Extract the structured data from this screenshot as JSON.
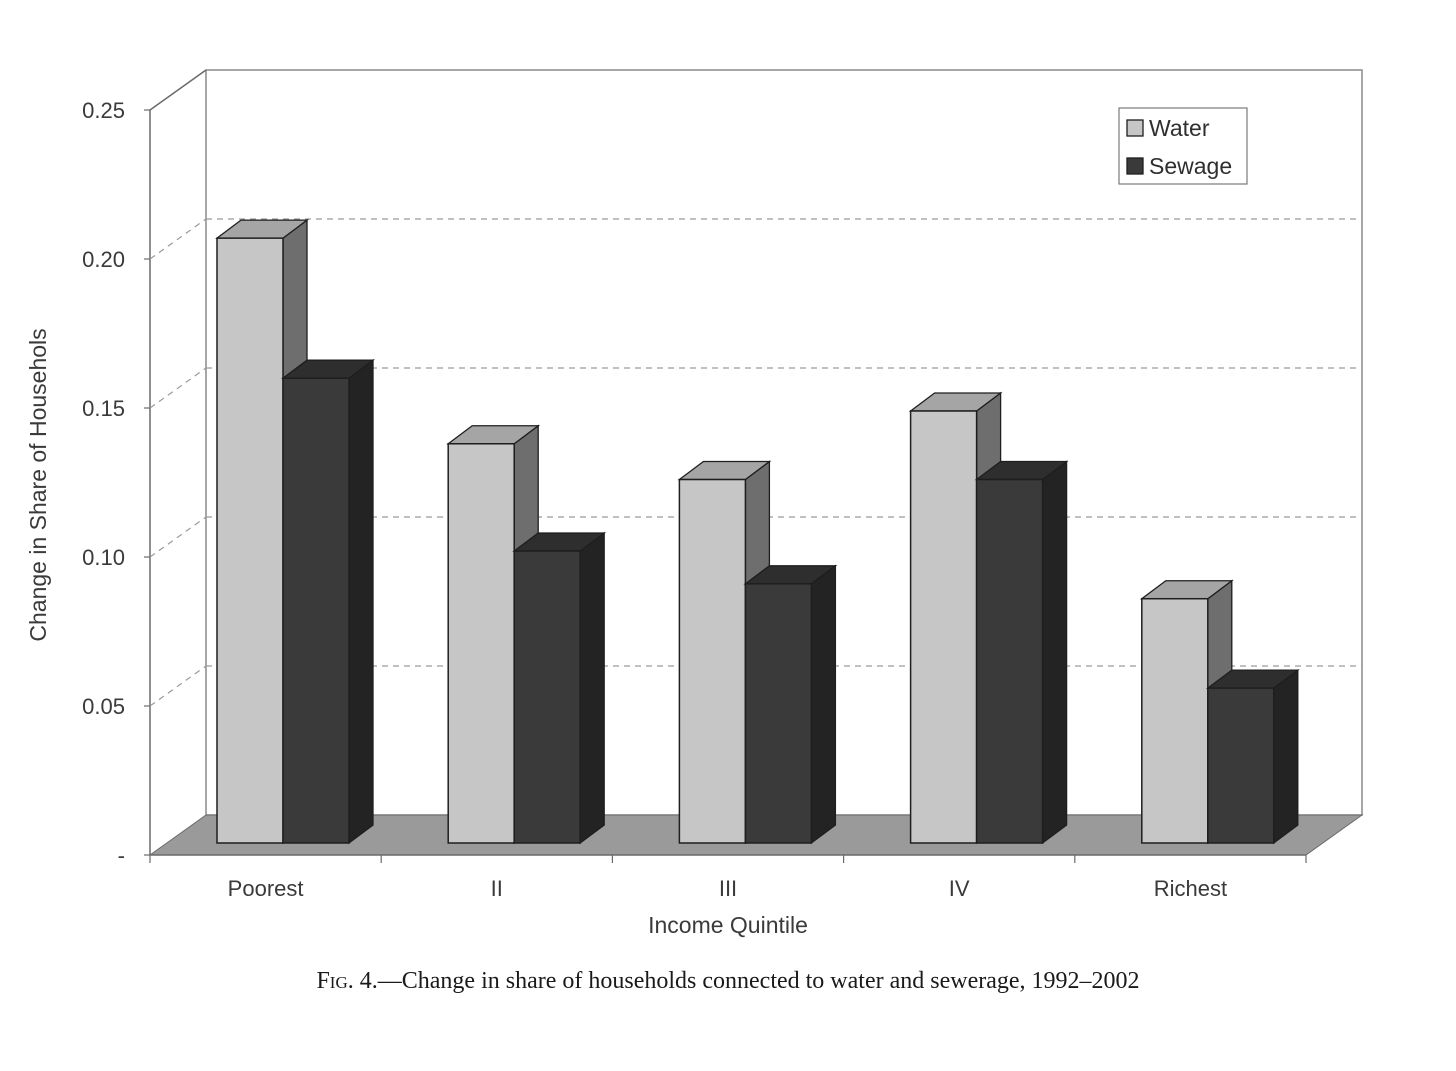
{
  "chart_data": {
    "type": "bar",
    "categories": [
      "Poorest",
      "II",
      "III",
      "IV",
      "Richest"
    ],
    "series": [
      {
        "name": "Water",
        "values": [
          0.207,
          0.138,
          0.126,
          0.149,
          0.086
        ],
        "color": "#c6c6c6"
      },
      {
        "name": "Sewage",
        "values": [
          0.16,
          0.102,
          0.091,
          0.126,
          0.056
        ],
        "color": "#3a3a3a"
      }
    ],
    "xlabel": "Income Quintile",
    "ylabel": "Change in Share of Househols",
    "ylim": [
      0,
      0.25
    ],
    "yticks": [
      {
        "value": 0,
        "label": "-"
      },
      {
        "value": 0.05,
        "label": "0.05"
      },
      {
        "value": 0.1,
        "label": "0.10"
      },
      {
        "value": 0.15,
        "label": "0.15"
      },
      {
        "value": 0.2,
        "label": "0.20"
      },
      {
        "value": 0.25,
        "label": "0.25"
      }
    ],
    "grid": true,
    "legend_position": "top-right",
    "style": "3d-clustered-column"
  },
  "caption": {
    "fig_label": "Fig. 4.",
    "text": "—Change in share of households connected to water and sewerage, 1992–2002"
  }
}
